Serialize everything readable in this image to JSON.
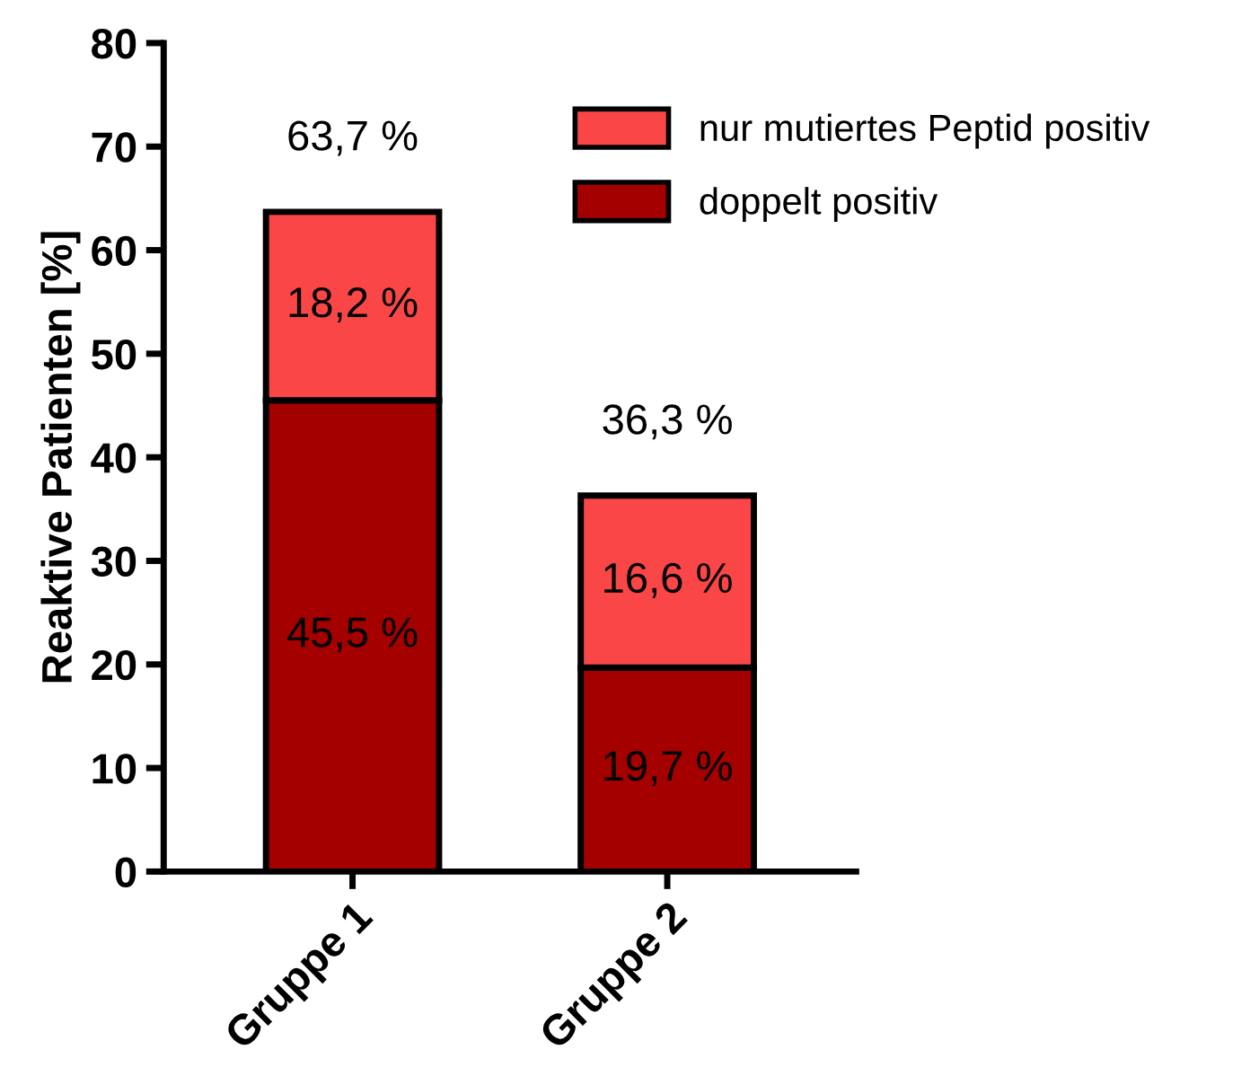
{
  "chart_data": {
    "type": "bar",
    "stacked": true,
    "ylabel": "Reaktive Patienten [%]",
    "categories": [
      "Gruppe 1",
      "Gruppe 2"
    ],
    "series": [
      {
        "name": "doppelt positiv",
        "color": "#a50000",
        "values": [
          45.5,
          19.7
        ],
        "value_labels": [
          "45,5 %",
          "19,7 %"
        ]
      },
      {
        "name": "nur mutiertes Peptid positiv",
        "color": "#fa4646",
        "values": [
          18.2,
          16.6
        ],
        "value_labels": [
          "18,2 %",
          "16,6 %"
        ]
      }
    ],
    "totals": [
      "63,7 %",
      "36,3 %"
    ],
    "ylim": [
      0,
      80
    ],
    "yticks": [
      0,
      10,
      20,
      30,
      40,
      50,
      60,
      70,
      80
    ],
    "grid": false,
    "legend": "top right"
  }
}
